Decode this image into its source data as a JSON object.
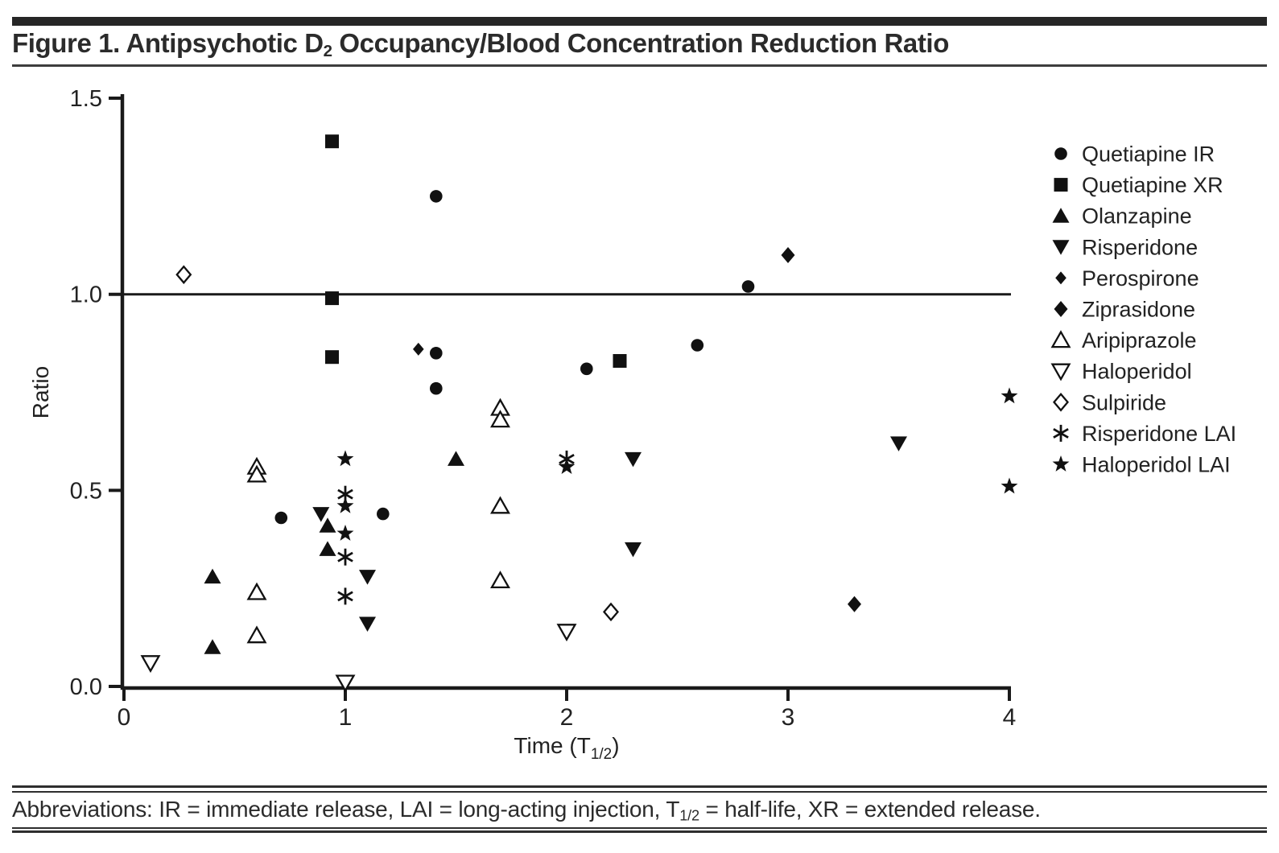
{
  "header": {
    "title_prefix": "Figure 1. Antipsychotic D",
    "title_sub": "2",
    "title_suffix": " Occupancy/Blood Concentration Reduction Ratio"
  },
  "footer": {
    "prefix": "Abbreviations: IR = immediate release, LAI = long-acting injection, T",
    "sub": "1/2",
    "suffix": " = half-life, XR = extended release."
  },
  "colors": {
    "marker": "#111111",
    "text": "#222222",
    "axis": "#1a1a1a",
    "rule": "#2e2e2e"
  },
  "chart_data": {
    "type": "scatter",
    "title": "",
    "xlabel_prefix": "Time (T",
    "xlabel_sub": "1/2",
    "xlabel_suffix": ")",
    "ylabel": "Ratio",
    "xlim": [
      0,
      4
    ],
    "ylim": [
      0,
      1.5
    ],
    "x_ticks": [
      0,
      1,
      2,
      3,
      4
    ],
    "x_tick_labels": [
      "0",
      "1",
      "2",
      "3",
      "4"
    ],
    "y_ticks": [
      0,
      0.5,
      1.0,
      1.5
    ],
    "y_tick_labels": [
      "0.0",
      "0.5",
      "1.0",
      "1.5"
    ],
    "reference_line_y": 1.0,
    "grid": false,
    "legend_position": "right",
    "series": [
      {
        "name": "Quetiapine IR",
        "marker": "circle",
        "fill": "filled",
        "points": [
          [
            0.71,
            0.43
          ],
          [
            1.17,
            0.44
          ],
          [
            1.41,
            1.25
          ],
          [
            1.41,
            0.85
          ],
          [
            1.41,
            0.76
          ],
          [
            2.09,
            0.81
          ],
          [
            2.59,
            0.87
          ],
          [
            2.82,
            1.02
          ]
        ]
      },
      {
        "name": "Quetiapine XR",
        "marker": "square",
        "fill": "filled",
        "points": [
          [
            0.94,
            1.39
          ],
          [
            0.94,
            0.99
          ],
          [
            0.94,
            0.84
          ],
          [
            2.24,
            0.83
          ]
        ]
      },
      {
        "name": "Olanzapine",
        "marker": "triangle-up",
        "fill": "filled",
        "points": [
          [
            0.4,
            0.28
          ],
          [
            0.4,
            0.1
          ],
          [
            0.92,
            0.41
          ],
          [
            0.92,
            0.35
          ],
          [
            1.5,
            0.58
          ]
        ]
      },
      {
        "name": "Risperidone",
        "marker": "triangle-down",
        "fill": "filled",
        "points": [
          [
            0.89,
            0.44
          ],
          [
            1.1,
            0.28
          ],
          [
            1.1,
            0.16
          ],
          [
            2.3,
            0.58
          ],
          [
            2.3,
            0.35
          ],
          [
            3.5,
            0.62
          ]
        ]
      },
      {
        "name": "Perospirone",
        "marker": "diamond-small",
        "fill": "filled",
        "points": [
          [
            1.33,
            0.86
          ]
        ]
      },
      {
        "name": "Ziprasidone",
        "marker": "diamond",
        "fill": "filled",
        "points": [
          [
            3.0,
            1.1
          ],
          [
            3.3,
            0.21
          ]
        ]
      },
      {
        "name": "Aripiprazole",
        "marker": "triangle-up",
        "fill": "open",
        "points": [
          [
            0.6,
            0.56
          ],
          [
            0.6,
            0.54
          ],
          [
            0.6,
            0.24
          ],
          [
            0.6,
            0.13
          ],
          [
            1.7,
            0.71
          ],
          [
            1.7,
            0.68
          ],
          [
            1.7,
            0.46
          ],
          [
            1.7,
            0.27
          ]
        ]
      },
      {
        "name": "Haloperidol",
        "marker": "triangle-down",
        "fill": "open",
        "points": [
          [
            0.12,
            0.06
          ],
          [
            1.0,
            0.01
          ],
          [
            2.0,
            0.14
          ]
        ]
      },
      {
        "name": "Sulpiride",
        "marker": "diamond",
        "fill": "open",
        "points": [
          [
            0.27,
            1.05
          ],
          [
            2.2,
            0.19
          ]
        ]
      },
      {
        "name": "Risperidone LAI",
        "marker": "asterisk",
        "fill": "line",
        "points": [
          [
            1.0,
            0.49
          ],
          [
            1.0,
            0.33
          ],
          [
            1.0,
            0.23
          ],
          [
            2.0,
            0.58
          ]
        ]
      },
      {
        "name": "Haloperidol LAI",
        "marker": "star",
        "fill": "filled",
        "points": [
          [
            1.0,
            0.58
          ],
          [
            1.0,
            0.46
          ],
          [
            1.0,
            0.39
          ],
          [
            2.0,
            0.56
          ],
          [
            4.0,
            0.74
          ],
          [
            4.0,
            0.51
          ]
        ]
      }
    ]
  }
}
